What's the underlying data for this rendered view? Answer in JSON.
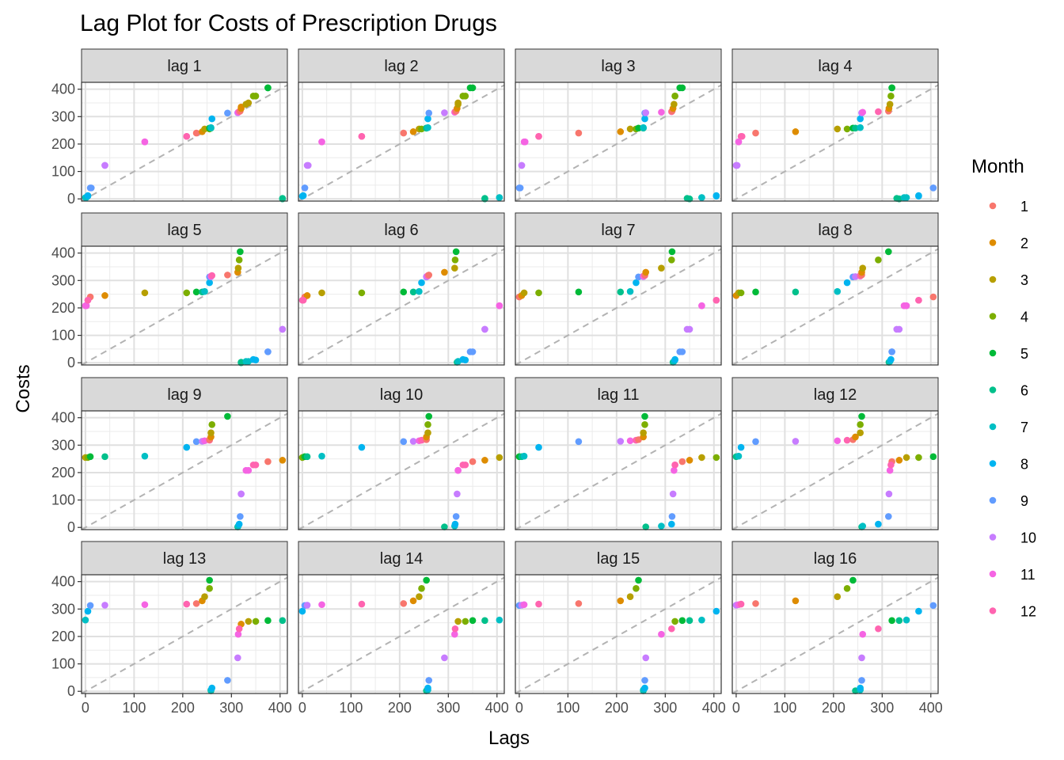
{
  "chart_data": {
    "type": "scatter",
    "title": "Lag Plot for Costs of Prescription Drugs",
    "xlabel": "Lags",
    "ylabel": "Costs",
    "xlim": [
      -8,
      415
    ],
    "ylim": [
      -8,
      425
    ],
    "xticks": [
      0,
      100,
      200,
      300,
      400
    ],
    "yticks": [
      0,
      100,
      200,
      300,
      400
    ],
    "grid": true,
    "reference_line": "y = x (dashed)",
    "legend": {
      "title": "Month",
      "position": "right",
      "labels": [
        "1",
        "2",
        "3",
        "4",
        "5",
        "6",
        "7",
        "8",
        "9",
        "10",
        "11",
        "12"
      ]
    },
    "months": [
      1,
      2,
      3,
      4,
      5,
      6,
      7,
      8,
      9,
      10,
      11,
      12,
      1,
      2,
      3,
      4,
      5,
      6,
      7,
      8,
      9,
      10,
      11,
      12,
      1,
      2,
      3,
      4,
      5,
      6,
      7,
      8,
      9,
      10,
      11,
      12
    ],
    "costs": [
      320,
      335,
      350,
      375,
      405,
      0,
      5,
      10,
      40,
      122,
      208,
      228,
      240,
      245,
      255,
      255,
      258,
      258,
      260,
      292,
      313,
      314,
      316,
      318,
      320,
      330,
      345,
      375,
      405,
      2,
      5,
      12,
      40,
      122,
      208,
      228
    ],
    "lags": [
      1,
      2,
      3,
      4,
      5,
      6,
      7,
      8,
      9,
      10,
      11,
      12,
      13,
      14,
      15,
      16
    ],
    "panels": [
      "lag 1",
      "lag 2",
      "lag 3",
      "lag 4",
      "lag 5",
      "lag 6",
      "lag 7",
      "lag 8",
      "lag 9",
      "lag 10",
      "lag 11",
      "lag 12",
      "lag 13",
      "lag 14",
      "lag 15",
      "lag 16"
    ],
    "colors": [
      "#F8766D",
      "#DE8C00",
      "#B79F00",
      "#7CAE00",
      "#00BA38",
      "#00C08B",
      "#00BFC4",
      "#00B4F0",
      "#619CFF",
      "#C77CFF",
      "#F564E3",
      "#FF64B0"
    ]
  }
}
